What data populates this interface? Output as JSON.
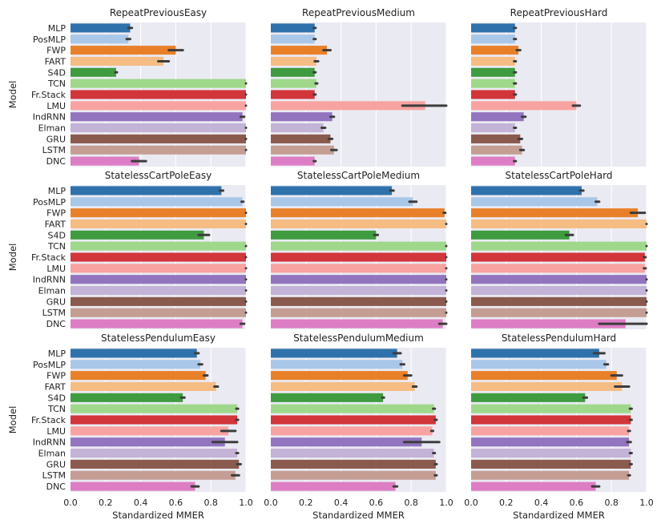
{
  "chart_data": {
    "type": "bar",
    "orientation": "horizontal",
    "ylabel": "Model",
    "xlabel": "Standardized MMER",
    "xlim": [
      0,
      1
    ],
    "xticks": [
      "0.0",
      "0.2",
      "0.4",
      "0.6",
      "0.8",
      "1.0"
    ],
    "grid": true,
    "categories": [
      "MLP",
      "PosMLP",
      "FWP",
      "FART",
      "S4D",
      "TCN",
      "Fr.Stack",
      "LMU",
      "IndRNN",
      "Elman",
      "GRU",
      "LSTM",
      "DNC"
    ],
    "colors": [
      "#2f72ab",
      "#a9c7e8",
      "#e8802a",
      "#f5bc84",
      "#3f9b3f",
      "#9fd88a",
      "#d2353a",
      "#f8a3a1",
      "#9274bf",
      "#c3b3d6",
      "#8b5a4e",
      "#c49d93",
      "#dd7dc4"
    ],
    "panels": [
      {
        "title": "RepeatPreviousEasy",
        "values": [
          0.34,
          0.33,
          0.6,
          0.53,
          0.26,
          1.0,
          1.0,
          1.0,
          0.98,
          1.0,
          1.0,
          1.0,
          0.39
        ],
        "errors": [
          0.01,
          0.01,
          0.04,
          0.03,
          0.005,
          0.0,
          0.0,
          0.0,
          0.01,
          0.0,
          0.0,
          0.0,
          0.04
        ]
      },
      {
        "title": "RepeatPreviousMedium",
        "values": [
          0.25,
          0.25,
          0.32,
          0.26,
          0.25,
          0.26,
          0.25,
          0.88,
          0.35,
          0.3,
          0.34,
          0.36,
          0.25
        ],
        "errors": [
          0.005,
          0.005,
          0.02,
          0.01,
          0.005,
          0.005,
          0.005,
          0.13,
          0.01,
          0.01,
          0.01,
          0.015,
          0.005
        ]
      },
      {
        "title": "RepeatPreviousHard",
        "values": [
          0.25,
          0.25,
          0.27,
          0.25,
          0.25,
          0.25,
          0.25,
          0.6,
          0.3,
          0.25,
          0.28,
          0.29,
          0.25
        ],
        "errors": [
          0.005,
          0.005,
          0.01,
          0.005,
          0.005,
          0.005,
          0.005,
          0.02,
          0.01,
          0.005,
          0.01,
          0.01,
          0.005
        ]
      },
      {
        "title": "StatelessCartPoleEasy",
        "values": [
          0.86,
          0.98,
          1.0,
          1.0,
          0.76,
          1.0,
          1.0,
          1.0,
          1.0,
          1.0,
          1.0,
          1.0,
          0.98
        ],
        "errors": [
          0.01,
          0.005,
          0.0,
          0.0,
          0.03,
          0.0,
          0.0,
          0.0,
          0.0,
          0.0,
          0.0,
          0.0,
          0.01
        ]
      },
      {
        "title": "StatelessCartPoleMedium",
        "values": [
          0.69,
          0.81,
          0.99,
          1.0,
          0.6,
          1.0,
          1.0,
          1.0,
          1.0,
          1.0,
          1.0,
          1.0,
          0.98
        ],
        "errors": [
          0.01,
          0.02,
          0.005,
          0.0,
          0.01,
          0.0,
          0.0,
          0.0,
          0.0,
          0.0,
          0.0,
          0.0,
          0.02
        ]
      },
      {
        "title": "StatelessCartPoleHard",
        "values": [
          0.63,
          0.72,
          0.95,
          1.0,
          0.56,
          1.0,
          0.99,
          0.99,
          1.0,
          1.0,
          1.0,
          1.0,
          0.88
        ],
        "errors": [
          0.01,
          0.01,
          0.04,
          0.0,
          0.02,
          0.0,
          0.005,
          0.005,
          0.0,
          0.0,
          0.0,
          0.0,
          0.15
        ]
      },
      {
        "title": "StatelessPendulumEasy",
        "values": [
          0.72,
          0.74,
          0.77,
          0.83,
          0.64,
          0.95,
          0.95,
          0.9,
          0.88,
          0.95,
          0.96,
          0.94,
          0.71
        ],
        "errors": [
          0.01,
          0.01,
          0.01,
          0.01,
          0.01,
          0.005,
          0.005,
          0.04,
          0.07,
          0.005,
          0.01,
          0.02,
          0.02
        ]
      },
      {
        "title": "StatelessPendulumMedium",
        "values": [
          0.72,
          0.75,
          0.78,
          0.82,
          0.64,
          0.93,
          0.94,
          0.92,
          0.86,
          0.93,
          0.94,
          0.94,
          0.71
        ],
        "errors": [
          0.02,
          0.01,
          0.02,
          0.01,
          0.005,
          0.005,
          0.005,
          0.005,
          0.1,
          0.005,
          0.005,
          0.005,
          0.01
        ]
      },
      {
        "title": "StatelessPendulumHard",
        "values": [
          0.73,
          0.77,
          0.83,
          0.86,
          0.65,
          0.91,
          0.91,
          0.9,
          0.9,
          0.91,
          0.91,
          0.9,
          0.71
        ],
        "errors": [
          0.03,
          0.01,
          0.03,
          0.04,
          0.01,
          0.005,
          0.005,
          0.005,
          0.01,
          0.005,
          0.005,
          0.005,
          0.02
        ]
      }
    ]
  }
}
